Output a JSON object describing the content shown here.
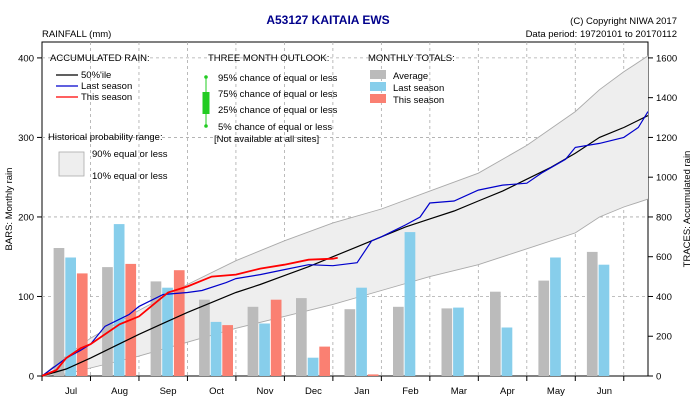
{
  "header": {
    "title": "A53127  KAITAIA EWS",
    "copyright": "(C) Copyright NIWA  2017",
    "data_period": "Data period:  19720101  to  20170112",
    "units_label": "RAINFALL (mm)"
  },
  "legends": {
    "accumulated": {
      "title": "ACCUMULATED RAIN:",
      "items": [
        {
          "label": "50%'ile",
          "color": "#000000"
        },
        {
          "label": "Last season",
          "color": "#0000cc"
        },
        {
          "label": "This season",
          "color": "#ff0000"
        }
      ]
    },
    "outlook": {
      "title": "THREE MONTH OUTLOOK:",
      "items": [
        "95% chance of equal or less",
        "75% chance of equal or less",
        "25% chance of equal or less",
        "5% chance of equal or less"
      ],
      "note": "[Not available at all sites]",
      "color": "#22cc22"
    },
    "monthly": {
      "title": "MONTHLY TOTALS:",
      "items": [
        {
          "label": "Average",
          "color": "#bbbbbb"
        },
        {
          "label": "Last season",
          "color": "#87ceeb"
        },
        {
          "label": "This season",
          "color": "#fa8072"
        }
      ]
    },
    "range": {
      "title": "Historical probability range:",
      "items": [
        "90% equal or less",
        "10% equal or less"
      ]
    }
  },
  "chart_data": {
    "type": "bar",
    "categories": [
      "Jul",
      "Aug",
      "Sep",
      "Oct",
      "Nov",
      "Dec",
      "Jan",
      "Feb",
      "Mar",
      "Apr",
      "May",
      "Jun"
    ],
    "series": [
      {
        "name": "Average",
        "values": [
          161,
          137,
          119,
          96,
          87,
          98,
          84,
          87,
          85,
          106,
          120,
          156
        ]
      },
      {
        "name": "Last season",
        "values": [
          149,
          191,
          111,
          68,
          66,
          23,
          111,
          181,
          86,
          61,
          149,
          140
        ]
      },
      {
        "name": "This season",
        "values": [
          129,
          141,
          133,
          64,
          96,
          37,
          2,
          null,
          null,
          null,
          null,
          null
        ]
      }
    ],
    "ylabel": "BARS: Monthly rain",
    "ylim": [
      0,
      420
    ],
    "y_ticks": [
      0,
      100,
      200,
      300,
      400
    ],
    "y2label": "TRACES: Accumulated rain",
    "y2lim": [
      0,
      1680
    ],
    "y2_ticks": [
      0,
      200,
      400,
      600,
      800,
      1000,
      1200,
      1400,
      1600
    ],
    "traces": {
      "median": [
        [
          0,
          0
        ],
        [
          0.5,
          35
        ],
        [
          1,
          90
        ],
        [
          1.5,
          150
        ],
        [
          2,
          210
        ],
        [
          2.5,
          265
        ],
        [
          3,
          320
        ],
        [
          3.5,
          370
        ],
        [
          4,
          420
        ],
        [
          4.5,
          460
        ],
        [
          5,
          505
        ],
        [
          5.5,
          550
        ],
        [
          6,
          600
        ],
        [
          6.5,
          650
        ],
        [
          7,
          700
        ],
        [
          7.5,
          750
        ],
        [
          8,
          790
        ],
        [
          8.5,
          830
        ],
        [
          9,
          880
        ],
        [
          9.5,
          930
        ],
        [
          10,
          990
        ],
        [
          10.5,
          1050
        ],
        [
          11,
          1120
        ],
        [
          11.5,
          1200
        ],
        [
          12,
          1250
        ],
        [
          12.5,
          1310
        ]
      ],
      "p10": [
        [
          0,
          0
        ],
        [
          0.5,
          10
        ],
        [
          1,
          40
        ],
        [
          2,
          100
        ],
        [
          3,
          170
        ],
        [
          4,
          240
        ],
        [
          5,
          300
        ],
        [
          6,
          360
        ],
        [
          7,
          430
        ],
        [
          8,
          500
        ],
        [
          9,
          560
        ],
        [
          10,
          640
        ],
        [
          11,
          720
        ],
        [
          11.5,
          800
        ],
        [
          12,
          850
        ],
        [
          12.5,
          890
        ]
      ],
      "p90": [
        [
          0,
          0
        ],
        [
          0.5,
          100
        ],
        [
          1,
          190
        ],
        [
          2,
          330
        ],
        [
          3,
          460
        ],
        [
          4,
          580
        ],
        [
          5,
          680
        ],
        [
          6,
          770
        ],
        [
          7,
          840
        ],
        [
          8,
          930
        ],
        [
          9,
          1020
        ],
        [
          10,
          1160
        ],
        [
          11,
          1330
        ],
        [
          11.5,
          1440
        ],
        [
          12,
          1530
        ],
        [
          12.5,
          1610
        ]
      ],
      "last_season": [
        [
          0,
          0
        ],
        [
          0.5,
          90
        ],
        [
          0.8,
          130
        ],
        [
          1,
          160
        ],
        [
          1.3,
          250
        ],
        [
          1.8,
          310
        ],
        [
          2,
          350
        ],
        [
          2.5,
          410
        ],
        [
          3,
          420
        ],
        [
          3.3,
          430
        ],
        [
          3.8,
          470
        ],
        [
          4,
          490
        ],
        [
          4.5,
          510
        ],
        [
          5,
          535
        ],
        [
          5.5,
          560
        ],
        [
          6,
          555
        ],
        [
          6.5,
          570
        ],
        [
          6.8,
          680
        ],
        [
          7,
          700
        ],
        [
          7.5,
          760
        ],
        [
          7.8,
          800
        ],
        [
          8,
          870
        ],
        [
          8.5,
          880
        ],
        [
          9,
          935
        ],
        [
          9.5,
          960
        ],
        [
          10,
          970
        ],
        [
          10.3,
          1020
        ],
        [
          10.8,
          1090
        ],
        [
          11,
          1150
        ],
        [
          11.5,
          1170
        ],
        [
          12,
          1200
        ],
        [
          12.3,
          1250
        ],
        [
          12.5,
          1330
        ]
      ],
      "this_season": [
        [
          0,
          0
        ],
        [
          0.3,
          30
        ],
        [
          0.5,
          90
        ],
        [
          0.8,
          140
        ],
        [
          1,
          160
        ],
        [
          1.3,
          210
        ],
        [
          1.6,
          260
        ],
        [
          2,
          300
        ],
        [
          2.3,
          360
        ],
        [
          2.6,
          420
        ],
        [
          3,
          450
        ],
        [
          3.5,
          500
        ],
        [
          4,
          510
        ],
        [
          4.5,
          540
        ],
        [
          5,
          560
        ],
        [
          5.5,
          585
        ],
        [
          6,
          590
        ],
        [
          6.1,
          595
        ]
      ]
    },
    "outlook": "not shown",
    "grid": true
  }
}
